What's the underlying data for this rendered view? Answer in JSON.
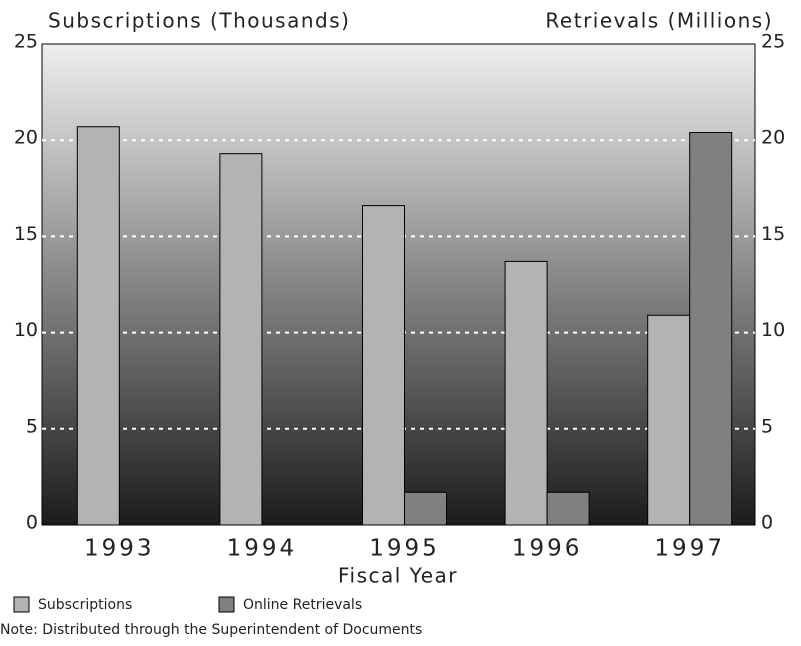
{
  "chart_data": {
    "type": "bar",
    "y_label": "Subscriptions (Thousands)",
    "y2_label": "Retrievals (Millions)",
    "x_label": "Fiscal Year",
    "note": "Note: Distributed through the Superintendent of Documents",
    "categories": [
      "1993",
      "1994",
      "1995",
      "1996",
      "1997"
    ],
    "series": [
      {
        "name": "Subscriptions",
        "color": "#b3b3b3",
        "values": [
          20.7,
          19.3,
          16.6,
          13.7,
          10.9
        ]
      },
      {
        "name": "Online Retrievals",
        "color": "#808080",
        "axis": "y2",
        "values": [
          null,
          null,
          1.7,
          1.7,
          20.4
        ]
      }
    ],
    "ylim": [
      0,
      25
    ],
    "yticks": [
      0,
      5,
      10,
      15,
      20,
      25
    ],
    "y2lim": [
      0,
      25
    ],
    "y2ticks": [
      0,
      5,
      10,
      15,
      20,
      25
    ],
    "grid": true
  }
}
